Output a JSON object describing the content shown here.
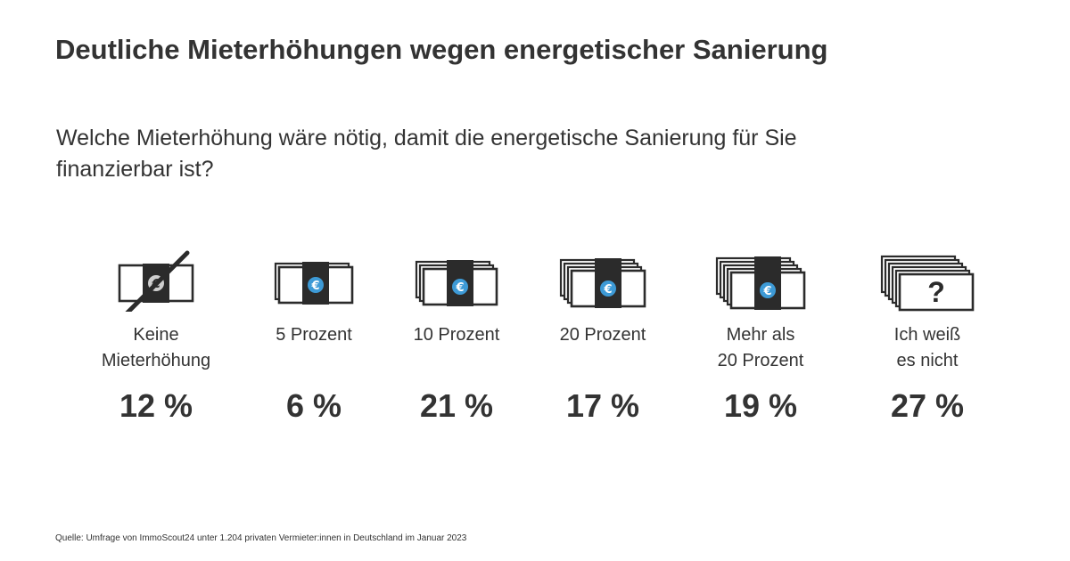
{
  "chart_data": {
    "type": "pictogram",
    "title": "Deutliche Mieterhöhungen wegen energetischer Sanierung",
    "subtitle": "Welche Mieterhöhung wäre nötig, damit die energetische Sanierung für Sie finanzierbar ist?",
    "categories": [
      "Keine\nMieterhöhung",
      "5 Prozent",
      "10 Prozent",
      "20 Prozent",
      "Mehr als\n20 Prozent",
      "Ich weiß\nes nicht"
    ],
    "values": [
      12,
      6,
      21,
      17,
      19,
      27
    ],
    "value_labels": [
      "12 %",
      "6 %",
      "21 %",
      "17 %",
      "19 %",
      "27 %"
    ],
    "icons": [
      "crossed-banknote-icon",
      "banknote-stack-icon",
      "banknote-stack-icon",
      "banknote-stack-icon",
      "banknote-stack-icon",
      "question-banknote-icon"
    ],
    "note_counts": [
      1,
      2,
      3,
      4,
      5,
      6
    ],
    "colors": {
      "text": "#333333",
      "euro": "#3d9ad6",
      "ink": "#2b2b2b"
    }
  },
  "source": "Quelle: Umfrage von ImmoScout24 unter 1.204 privaten Vermieter:innen in Deutschland im Januar 2023"
}
